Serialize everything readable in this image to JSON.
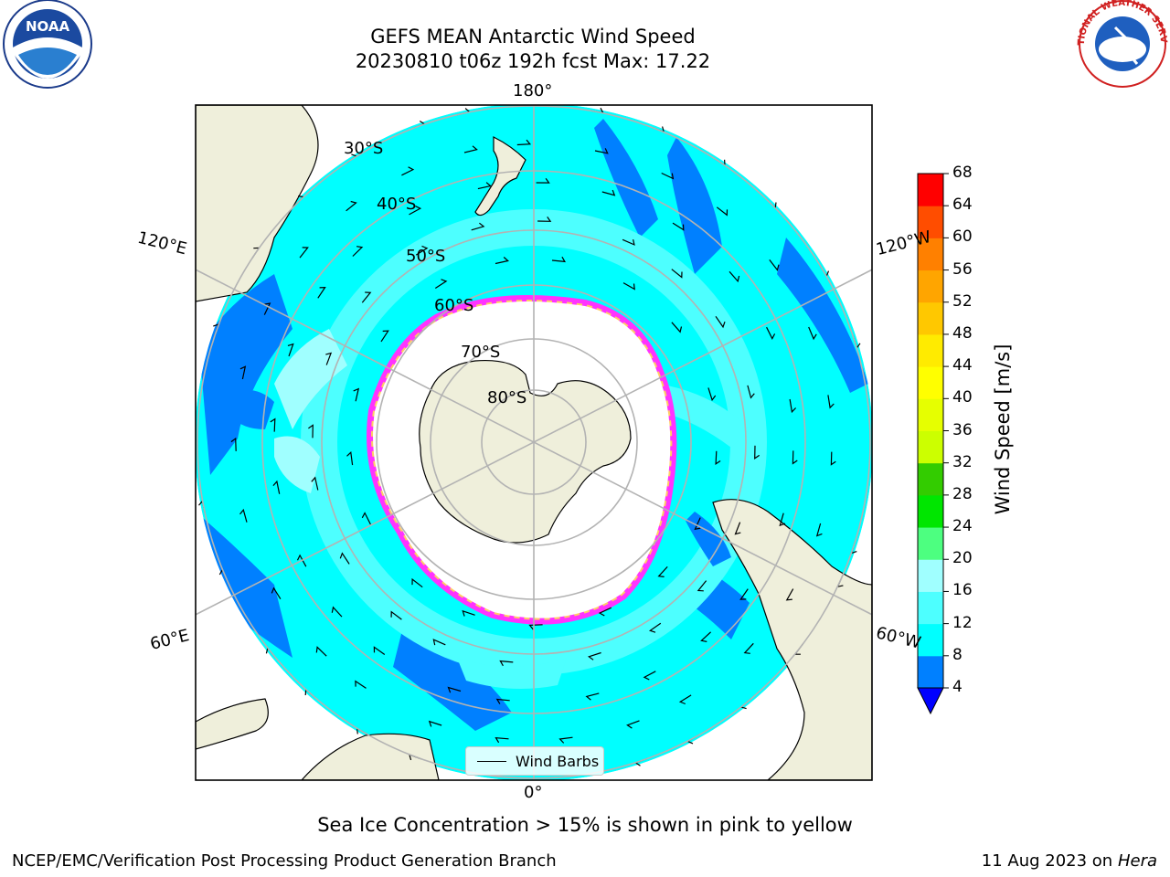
{
  "header": {
    "title_line1": "GEFS MEAN Antarctic Wind Speed",
    "title_line2": "20230810 t06z 192h fcst   Max: 17.22"
  },
  "logos": {
    "left": "noaa-logo",
    "right": "national-weather-service-logo",
    "right_text": "NATIONAL WEATHER SERVICE"
  },
  "map": {
    "projection": "south-polar-stereographic",
    "longitude_labels": {
      "top": "180°",
      "left_upper": "120°E",
      "right_upper": "120°W",
      "left_lower": "60°E",
      "right_lower": "60°W",
      "bottom": "0°"
    },
    "latitude_labels": [
      "30°S",
      "40°S",
      "50°S",
      "60°S",
      "70°S",
      "80°S"
    ],
    "legend": {
      "label": "Wind Barbs",
      "icon": "wind-barb-line-icon"
    },
    "ocean_color_bands": [
      "#0080ff",
      "#00ffff",
      "#4dffff",
      "#a0ffff"
    ],
    "land_color": "#efefdb",
    "sea_ice_colors": [
      "#ff33ff",
      "#ff99cc",
      "#ffcc66",
      "#ffff33"
    ]
  },
  "colorbar": {
    "title": "Wind Speed [m/s]",
    "ticks": [
      "4",
      "8",
      "12",
      "16",
      "20",
      "24",
      "28",
      "32",
      "36",
      "40",
      "44",
      "48",
      "52",
      "56",
      "60",
      "64",
      "68"
    ],
    "colors": [
      "#0080ff",
      "#00ffff",
      "#4dffff",
      "#a0ffff",
      "#4dff80",
      "#00e600",
      "#33cc00",
      "#ccff00",
      "#e6ff00",
      "#ffff00",
      "#ffeb00",
      "#ffc800",
      "#ffa500",
      "#ff8000",
      "#ff4d00",
      "#ff0000"
    ],
    "under_color": "#0000ff"
  },
  "footer": {
    "note": "Sea Ice Concentration > 15% is shown in pink to yellow",
    "credit_left": "NCEP/EMC/Verification Post Processing Product Generation Branch",
    "credit_right_date": "11 Aug 2023 on",
    "credit_right_host": "Hera"
  }
}
